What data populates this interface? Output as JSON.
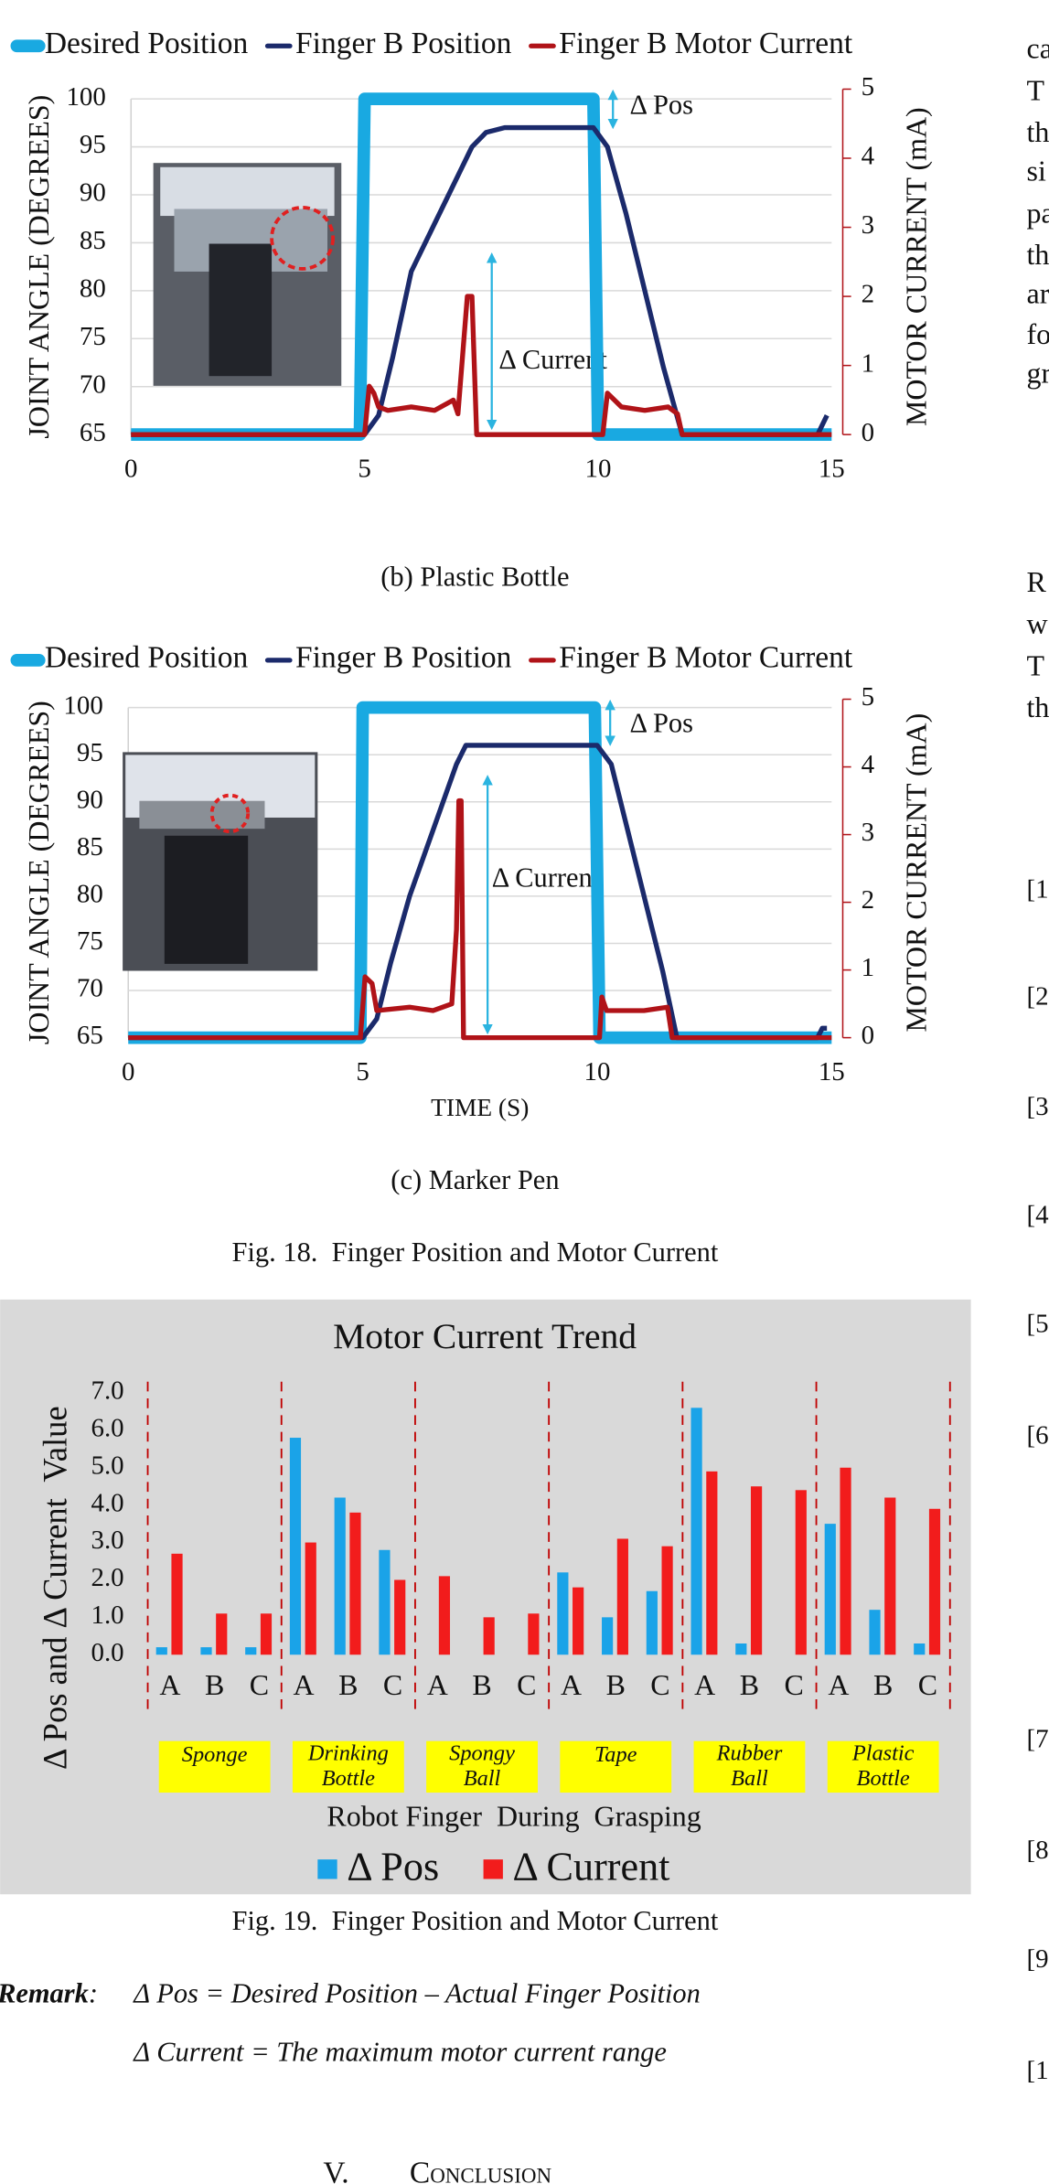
{
  "chart_data": [
    {
      "type": "line",
      "caption": "(b) Plastic Bottle",
      "y_label": "JOINT ANGLE (DEGREES)",
      "y2_label": "MOTOR CURRENT (mA)",
      "annotations": [
        "Δ Pos",
        "Δ Current"
      ],
      "xlim": [
        0,
        15
      ],
      "xticks": [
        0,
        5,
        10,
        15
      ],
      "ylim": [
        65,
        100
      ],
      "yticks": [
        65,
        70,
        75,
        80,
        85,
        90,
        95,
        100
      ],
      "y2lim": [
        0,
        5
      ],
      "y2ticks": [
        0,
        1,
        2,
        3,
        4,
        5
      ],
      "grid": true,
      "series": [
        {
          "name": "Desired Position",
          "color": "#19a9e1",
          "x": [
            0,
            4.9,
            5.0,
            9.9,
            10.0,
            15
          ],
          "values": [
            65,
            65,
            100,
            100,
            65,
            65
          ]
        },
        {
          "name": "Finger B Position",
          "color": "#1b2a6b",
          "x": [
            0,
            5,
            5.3,
            5.6,
            6,
            6.5,
            7,
            7.3,
            7.6,
            8,
            9,
            9.9,
            10.2,
            10.6,
            11,
            11.4,
            11.8,
            14.7,
            14.8,
            14.9
          ],
          "values": [
            65,
            65,
            67,
            73,
            82,
            87,
            92,
            95,
            96.5,
            97,
            97,
            97,
            95,
            88,
            80,
            72,
            65,
            65,
            66,
            67
          ]
        },
        {
          "name": "Finger B Motor Current",
          "color": "#b01318",
          "axis": "y2",
          "x": [
            0,
            5,
            5.1,
            5.2,
            5.3,
            5.5,
            6,
            6.5,
            6.9,
            7.0,
            7.2,
            7.3,
            7.4,
            7.5,
            10,
            10.1,
            10.2,
            10.5,
            11,
            11.5,
            11.7,
            11.8,
            15
          ],
          "values": [
            0,
            0,
            0.7,
            0.6,
            0.4,
            0.35,
            0.4,
            0.35,
            0.5,
            0.3,
            2.0,
            2.0,
            0,
            0,
            0,
            0,
            0.6,
            0.4,
            0.35,
            0.4,
            0.3,
            0,
            0
          ]
        }
      ]
    },
    {
      "type": "line",
      "caption": "(c) Marker Pen",
      "x_label": "TIME (S)",
      "y_label": "JOINT ANGLE (DEGREES)",
      "y2_label": "MOTOR CURRENT (mA)",
      "annotations": [
        "Δ Pos",
        "Δ Current"
      ],
      "xlim": [
        0,
        15
      ],
      "xticks": [
        0,
        5,
        10,
        15
      ],
      "ylim": [
        65,
        100
      ],
      "yticks": [
        65,
        70,
        75,
        80,
        85,
        90,
        95,
        100
      ],
      "y2lim": [
        0,
        5
      ],
      "y2ticks": [
        0,
        1,
        2,
        3,
        4,
        5
      ],
      "grid": true,
      "series": [
        {
          "name": "Desired Position",
          "color": "#19a9e1",
          "x": [
            0,
            4.95,
            5.0,
            9.95,
            10.05,
            15
          ],
          "values": [
            65,
            65,
            100,
            100,
            65,
            65
          ]
        },
        {
          "name": "Finger B Position",
          "color": "#1b2a6b",
          "x": [
            0,
            5,
            5.3,
            5.6,
            6,
            6.5,
            7,
            7.2,
            8,
            9,
            10,
            10.3,
            10.6,
            11,
            11.4,
            11.7,
            14.7,
            14.8,
            14.9
          ],
          "values": [
            65,
            65,
            67,
            73,
            80,
            87,
            94,
            96,
            96,
            96,
            96,
            94,
            88,
            80,
            72,
            65,
            65,
            66,
            66
          ]
        },
        {
          "name": "Finger B Motor Current",
          "color": "#b01318",
          "axis": "y2",
          "x": [
            0,
            4.95,
            5.05,
            5.2,
            5.3,
            6,
            6.5,
            6.9,
            7.0,
            7.05,
            7.1,
            7.15,
            7.2,
            10.05,
            10.1,
            10.2,
            11,
            11.5,
            11.6,
            15
          ],
          "values": [
            0,
            0,
            0.9,
            0.8,
            0.4,
            0.45,
            0.4,
            0.5,
            1.6,
            3.5,
            3.5,
            0,
            0,
            0,
            0.6,
            0.4,
            0.4,
            0.45,
            0,
            0
          ]
        }
      ]
    },
    {
      "type": "bar",
      "title": "Motor Current Trend",
      "x_label": "Robot Finger  During  Grasping",
      "y_label": "Δ Pos and Δ Current  Value",
      "categories": [
        "A",
        "B",
        "C",
        "A",
        "B",
        "C",
        "A",
        "B",
        "C",
        "A",
        "B",
        "C",
        "A",
        "B",
        "C",
        "A",
        "B",
        "C"
      ],
      "groups": [
        [
          "Sponge"
        ],
        [
          "Drinking",
          "Bottle"
        ],
        [
          "Spongy",
          "Ball"
        ],
        [
          "Tape"
        ],
        [
          "Rubber",
          "Ball"
        ],
        [
          "Plastic",
          "Bottle"
        ]
      ],
      "ylim": [
        0,
        7
      ],
      "yticks": [
        {
          "value": 0,
          "label": "0.0"
        },
        {
          "value": 1,
          "label": "1.0"
        },
        {
          "value": 2,
          "label": "2.0"
        },
        {
          "value": 3,
          "label": "3.0"
        },
        {
          "value": 4,
          "label": "4.0"
        },
        {
          "value": 5,
          "label": "5.0"
        },
        {
          "value": 6,
          "label": "6.0"
        },
        {
          "value": 7,
          "label": "7.0"
        }
      ],
      "series": [
        {
          "name": "Δ Pos",
          "color": "#1aa3e8",
          "values": [
            0.2,
            0.2,
            0.2,
            5.8,
            4.2,
            2.8,
            0,
            0,
            0,
            2.2,
            1.0,
            1.7,
            6.6,
            0.3,
            0,
            3.5,
            1.2,
            0.3
          ]
        },
        {
          "name": "Δ Current",
          "color": "#f21c1c",
          "values": [
            2.7,
            1.1,
            1.1,
            3.0,
            3.8,
            2.0,
            2.1,
            1.0,
            1.1,
            1.8,
            3.1,
            2.9,
            4.9,
            4.5,
            4.4,
            5.0,
            4.2,
            3.9
          ]
        }
      ]
    }
  ],
  "captions": [
    "Fig. 18.  Finger Position and Motor Current",
    "Fig. 19.  Finger Position and Motor Current"
  ],
  "remark": {
    "label": "Remark",
    "colon": ":",
    "lines": [
      "Δ Pos = Desired Position – Actual Finger Position",
      "Δ Current = The maximum motor current range"
    ]
  },
  "section": {
    "number": "V.",
    "title": "Conclusion"
  },
  "right_column": {
    "text_lines": [
      "ca",
      "T",
      "th",
      "si",
      "pa",
      "th",
      "ar",
      "fo",
      "gr"
    ],
    "text_lines_2": [
      "R",
      "w",
      "T",
      "th"
    ],
    "references": [
      "[1",
      "[2",
      "[3",
      "[4",
      "[5",
      "[6",
      "[7",
      "[8",
      "[9",
      "[1"
    ]
  }
}
